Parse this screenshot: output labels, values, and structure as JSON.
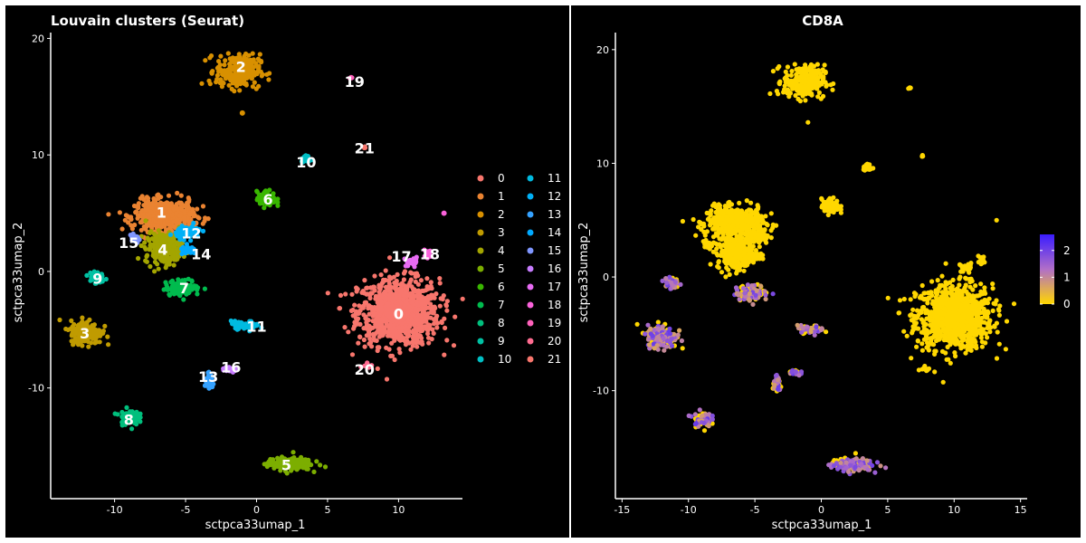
{
  "chart_data": [
    {
      "type": "scatter",
      "title": "Louvain clusters (Seurat)",
      "xlabel": "sctpca33umap_1",
      "ylabel": "sctpca33umap_2",
      "xlim": [
        -14.5,
        14.5
      ],
      "ylim": [
        -19.5,
        20.5
      ],
      "xticks": [
        -10,
        -5,
        0,
        5,
        10
      ],
      "yticks": [
        -10,
        0,
        10,
        20
      ],
      "grid": false,
      "legend": "right",
      "legend_entries": [
        "0",
        "1",
        "2",
        "3",
        "4",
        "5",
        "6",
        "7",
        "8",
        "9",
        "10",
        "11",
        "12",
        "13",
        "14",
        "15",
        "16",
        "17",
        "18",
        "19",
        "20",
        "21"
      ],
      "colors": [
        "#F8766D",
        "#EA8331",
        "#D89000",
        "#C09B00",
        "#A3A500",
        "#7CAE00",
        "#39B600",
        "#00BB4E",
        "#00BF7D",
        "#00C1A3",
        "#00BFC4",
        "#00BAE0",
        "#00B0F6",
        "#35A2FF",
        "#00A9FF",
        "#7F96FF",
        "#C77CFF",
        "#E76BF3",
        "#FA62DB",
        "#FF62BC",
        "#FF6C91",
        "#F8766D"
      ],
      "clusters": [
        {
          "name": "0",
          "center": [
            10.0,
            -3.5
          ],
          "spread": [
            2.6,
            2.6
          ],
          "n": 900
        },
        {
          "name": "1",
          "center": [
            -6.5,
            4.8
          ],
          "spread": [
            1.9,
            1.2
          ],
          "n": 500
        },
        {
          "name": "2",
          "center": [
            -1.3,
            17.2
          ],
          "spread": [
            1.4,
            1.3
          ],
          "n": 260
        },
        {
          "name": "3",
          "center": [
            -12.0,
            -5.2
          ],
          "spread": [
            1.0,
            0.9
          ],
          "n": 220
        },
        {
          "name": "4",
          "center": [
            -6.5,
            2.0
          ],
          "spread": [
            1.2,
            1.2
          ],
          "n": 260
        },
        {
          "name": "5",
          "center": [
            2.3,
            -16.5
          ],
          "spread": [
            1.4,
            0.5
          ],
          "n": 170
        },
        {
          "name": "6",
          "center": [
            0.7,
            6.2
          ],
          "spread": [
            0.6,
            0.6
          ],
          "n": 90
        },
        {
          "name": "7",
          "center": [
            -5.2,
            -1.4
          ],
          "spread": [
            1.1,
            0.6
          ],
          "n": 120
        },
        {
          "name": "8",
          "center": [
            -9.0,
            -12.5
          ],
          "spread": [
            0.6,
            0.6
          ],
          "n": 70
        },
        {
          "name": "9",
          "center": [
            -11.3,
            -0.5
          ],
          "spread": [
            0.5,
            0.5
          ],
          "n": 50
        },
        {
          "name": "10",
          "center": [
            3.5,
            9.6
          ],
          "spread": [
            0.3,
            0.3
          ],
          "n": 30
        },
        {
          "name": "11",
          "center": [
            -0.8,
            -4.6
          ],
          "spread": [
            0.9,
            0.3
          ],
          "n": 50
        },
        {
          "name": "12",
          "center": [
            -4.8,
            3.4
          ],
          "spread": [
            0.8,
            0.5
          ],
          "n": 80
        },
        {
          "name": "13",
          "center": [
            -3.3,
            -9.5
          ],
          "spread": [
            0.3,
            0.6
          ],
          "n": 40
        },
        {
          "name": "14",
          "center": [
            -4.8,
            1.8
          ],
          "spread": [
            0.5,
            0.3
          ],
          "n": 40
        },
        {
          "name": "15",
          "center": [
            -8.6,
            2.8
          ],
          "spread": [
            0.4,
            0.3
          ],
          "n": 30
        },
        {
          "name": "16",
          "center": [
            -2.0,
            -8.4
          ],
          "spread": [
            0.4,
            0.3
          ],
          "n": 25
        },
        {
          "name": "17",
          "center": [
            10.9,
            0.8
          ],
          "spread": [
            0.5,
            0.4
          ],
          "n": 25
        },
        {
          "name": "18",
          "center": [
            12.0,
            1.5
          ],
          "spread": [
            0.3,
            0.3
          ],
          "n": 15
        },
        {
          "name": "19",
          "center": [
            6.7,
            16.6
          ],
          "spread": [
            0.1,
            0.1
          ],
          "n": 5
        },
        {
          "name": "20",
          "center": [
            7.8,
            -8.0
          ],
          "spread": [
            0.3,
            0.3
          ],
          "n": 10
        },
        {
          "name": "21",
          "center": [
            7.6,
            10.7
          ],
          "spread": [
            0.1,
            0.1
          ],
          "n": 4
        }
      ],
      "outliers": [
        [
          13.2,
          5.0,
          "18"
        ],
        [
          -1.0,
          13.6,
          "2"
        ]
      ],
      "cluster_labels": [
        {
          "text": "0",
          "x": 10.0,
          "y": -3.6
        },
        {
          "text": "1",
          "x": -6.7,
          "y": 5.1
        },
        {
          "text": "2",
          "x": -1.1,
          "y": 17.6
        },
        {
          "text": "3",
          "x": -12.1,
          "y": -5.3
        },
        {
          "text": "4",
          "x": -6.6,
          "y": 1.9
        },
        {
          "text": "5",
          "x": 2.1,
          "y": -16.6
        },
        {
          "text": "6",
          "x": 0.8,
          "y": 6.2
        },
        {
          "text": "7",
          "x": -5.1,
          "y": -1.4
        },
        {
          "text": "8",
          "x": -9.0,
          "y": -12.7
        },
        {
          "text": "9",
          "x": -11.2,
          "y": -0.6
        },
        {
          "text": "10",
          "x": 3.5,
          "y": 9.4
        },
        {
          "text": "11",
          "x": 0.0,
          "y": -4.7
        },
        {
          "text": "12",
          "x": -4.6,
          "y": 3.3
        },
        {
          "text": "13",
          "x": -3.4,
          "y": -9.0
        },
        {
          "text": "14",
          "x": -3.9,
          "y": 1.5
        },
        {
          "text": "15",
          "x": -9.0,
          "y": 2.5
        },
        {
          "text": "16",
          "x": -1.8,
          "y": -8.2
        },
        {
          "text": "17",
          "x": 10.2,
          "y": 1.3
        },
        {
          "text": "18",
          "x": 12.2,
          "y": 1.5
        },
        {
          "text": "19",
          "x": 6.9,
          "y": 16.3
        },
        {
          "text": "20",
          "x": 7.6,
          "y": -8.4
        },
        {
          "text": "21",
          "x": 7.6,
          "y": 10.6
        }
      ]
    },
    {
      "type": "scatter",
      "title": "CD8A",
      "xlabel": "sctpca33umap_1",
      "ylabel": "sctpca33umap_2",
      "xlim": [
        -15.5,
        15.5
      ],
      "ylim": [
        -19.5,
        21.5
      ],
      "xticks": [
        -15,
        -10,
        -5,
        0,
        5,
        10,
        15
      ],
      "yticks": [
        -10,
        0,
        10,
        20
      ],
      "grid": false,
      "legend": "right",
      "colorbar": {
        "min": 0,
        "max": 2.6,
        "ticks": [
          0,
          1,
          2
        ],
        "low_color": "#FFD700",
        "mid_color": "#B16FC8",
        "high_color": "#3A1CFF"
      },
      "expressing_clusters": [
        "3",
        "5",
        "7",
        "9",
        "13",
        "16",
        "11",
        "8"
      ]
    }
  ]
}
